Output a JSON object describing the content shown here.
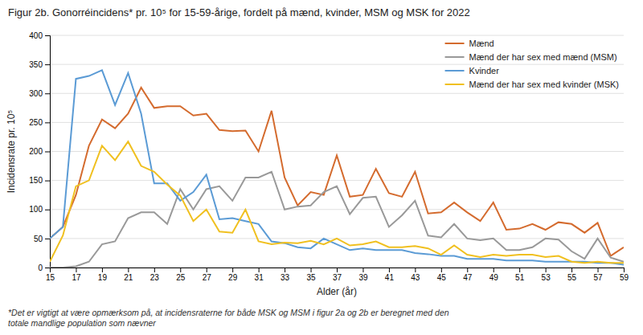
{
  "chart_data": {
    "type": "line",
    "title": "Figur 2b. Gonorréincidens* pr. 10⁵ for 15-59-årige, fordelt på mænd, kvinder, MSM og MSK for 2022",
    "xlabel": "Alder (år)",
    "ylabel": "Incidensrate pr. 10⁵",
    "footnote": "*Det er vigtigt at være opmærksom på, at incidensraterne for både MSK og MSM i figur 2a og 2b er beregnet med den\ntotale mandlige population som nævner",
    "x": [
      15,
      16,
      17,
      18,
      19,
      20,
      21,
      22,
      23,
      24,
      25,
      26,
      27,
      28,
      29,
      30,
      31,
      32,
      33,
      34,
      35,
      36,
      37,
      38,
      39,
      40,
      41,
      42,
      43,
      44,
      45,
      46,
      47,
      48,
      49,
      50,
      51,
      52,
      53,
      54,
      55,
      56,
      57,
      58,
      59
    ],
    "series": [
      {
        "name": "Mænd",
        "color": "#d46b2e",
        "values": [
          50,
          70,
          125,
          210,
          255,
          240,
          265,
          310,
          275,
          278,
          278,
          262,
          265,
          237,
          235,
          236,
          200,
          270,
          155,
          107,
          130,
          125,
          193,
          122,
          125,
          170,
          128,
          122,
          165,
          93,
          95,
          112,
          95,
          80,
          112,
          65,
          67,
          75,
          65,
          78,
          75,
          60,
          77,
          20,
          35
        ]
      },
      {
        "name": "Mænd der har sex med mænd (MSM)",
        "color": "#999999",
        "values": [
          0,
          0,
          2,
          10,
          40,
          45,
          85,
          95,
          95,
          75,
          135,
          100,
          135,
          140,
          115,
          155,
          155,
          165,
          100,
          105,
          107,
          130,
          140,
          92,
          120,
          122,
          70,
          90,
          115,
          55,
          52,
          75,
          50,
          47,
          50,
          30,
          30,
          35,
          50,
          48,
          28,
          15,
          50,
          17,
          10
        ]
      },
      {
        "name": "Kvinder",
        "color": "#5b9bd5",
        "values": [
          50,
          70,
          325,
          330,
          340,
          280,
          335,
          265,
          145,
          145,
          115,
          130,
          160,
          83,
          85,
          80,
          75,
          45,
          42,
          35,
          33,
          50,
          40,
          30,
          33,
          30,
          30,
          30,
          25,
          23,
          20,
          20,
          15,
          15,
          15,
          12,
          12,
          12,
          10,
          10,
          10,
          10,
          8,
          8,
          5
        ]
      },
      {
        "name": "Mænd der har sex med kvinder (MSK)",
        "color": "#f0c020",
        "values": [
          10,
          55,
          140,
          150,
          210,
          185,
          217,
          175,
          165,
          143,
          124,
          80,
          100,
          62,
          60,
          100,
          45,
          40,
          43,
          42,
          46,
          40,
          50,
          38,
          40,
          45,
          35,
          35,
          37,
          33,
          22,
          38,
          22,
          18,
          22,
          20,
          22,
          22,
          18,
          20,
          10,
          8,
          10,
          8,
          8
        ]
      }
    ],
    "xlim": [
      15,
      59
    ],
    "xticks": [
      15,
      17,
      19,
      21,
      23,
      25,
      27,
      29,
      31,
      33,
      35,
      37,
      39,
      41,
      43,
      45,
      47,
      49,
      51,
      53,
      55,
      57,
      59
    ],
    "ylim": [
      0,
      400
    ],
    "yticks": [
      0,
      50,
      100,
      150,
      200,
      250,
      300,
      350,
      400
    ],
    "grid": "y",
    "legend": "upper right"
  }
}
